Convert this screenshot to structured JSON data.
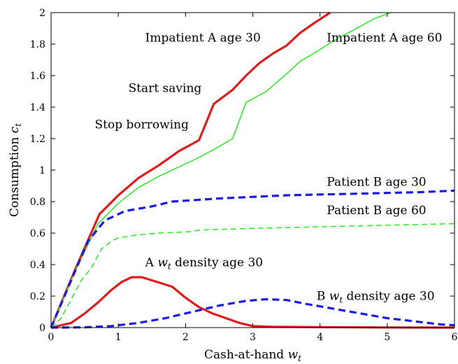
{
  "chart_data": {
    "type": "line",
    "xlabel": "Cash-at-hand",
    "xlabel_sub": "t",
    "xlabel_var": "w",
    "ylabel": "Consumption",
    "ylabel_var": "c",
    "ylabel_sub": "t",
    "xlim": [
      0,
      6
    ],
    "ylim": [
      0,
      2
    ],
    "xticks": [
      0,
      1,
      2,
      3,
      4,
      5,
      6
    ],
    "yticks": [
      0,
      0.2,
      0.4,
      0.6,
      0.8,
      1,
      1.2,
      1.4,
      1.6,
      1.8,
      2
    ],
    "ytick_labels": [
      "0",
      "0.2",
      "0.4",
      "0.6",
      "0.8",
      "1",
      "1.2",
      "1.4",
      "1.6",
      "1.8",
      "2"
    ],
    "grid": false,
    "legend": "none",
    "series": [
      {
        "label_id": "impatient-a-age30",
        "color": "#e31a1c",
        "style": "solid-thick",
        "points": [
          [
            0,
            0
          ],
          [
            0.35,
            0.36
          ],
          [
            0.72,
            0.72
          ],
          [
            1.0,
            0.84
          ],
          [
            1.3,
            0.95
          ],
          [
            1.6,
            1.03
          ],
          [
            1.9,
            1.12
          ],
          [
            2.2,
            1.19
          ],
          [
            2.42,
            1.42
          ],
          [
            2.7,
            1.51
          ],
          [
            2.9,
            1.6
          ],
          [
            3.1,
            1.68
          ],
          [
            3.3,
            1.74
          ],
          [
            3.5,
            1.79
          ],
          [
            3.7,
            1.87
          ],
          [
            3.9,
            1.93
          ],
          [
            4.15,
            2.0
          ]
        ]
      },
      {
        "label_id": "impatient-a-age60",
        "color": "#22ee22",
        "style": "solid-thin",
        "points": [
          [
            0,
            0
          ],
          [
            0.35,
            0.35
          ],
          [
            0.7,
            0.66
          ],
          [
            1.0,
            0.79
          ],
          [
            1.3,
            0.89
          ],
          [
            1.6,
            0.96
          ],
          [
            1.9,
            1.02
          ],
          [
            2.2,
            1.08
          ],
          [
            2.5,
            1.15
          ],
          [
            2.7,
            1.2
          ],
          [
            2.9,
            1.43
          ],
          [
            3.2,
            1.5
          ],
          [
            3.5,
            1.61
          ],
          [
            3.7,
            1.69
          ],
          [
            3.9,
            1.74
          ],
          [
            4.2,
            1.82
          ],
          [
            4.5,
            1.89
          ],
          [
            4.8,
            1.96
          ],
          [
            5.05,
            2.0
          ]
        ]
      },
      {
        "label_id": "patient-b-age30",
        "color": "#1a1aee",
        "style": "dashed-thick",
        "points": [
          [
            0,
            0
          ],
          [
            0.3,
            0.3
          ],
          [
            0.55,
            0.55
          ],
          [
            0.8,
            0.68
          ],
          [
            1.1,
            0.74
          ],
          [
            1.5,
            0.77
          ],
          [
            1.8,
            0.8
          ],
          [
            2.5,
            0.82
          ],
          [
            3.5,
            0.84
          ],
          [
            4.5,
            0.85
          ],
          [
            5.5,
            0.86
          ],
          [
            6.0,
            0.87
          ]
        ]
      },
      {
        "label_id": "patient-b-age60",
        "color": "#22ee22",
        "style": "dashed-thin",
        "points": [
          [
            0,
            0
          ],
          [
            0.15,
            0.06
          ],
          [
            0.3,
            0.18
          ],
          [
            0.45,
            0.3
          ],
          [
            0.6,
            0.38
          ],
          [
            0.75,
            0.5
          ],
          [
            0.9,
            0.55
          ],
          [
            1.0,
            0.57
          ],
          [
            1.3,
            0.59
          ],
          [
            1.6,
            0.6
          ],
          [
            2.1,
            0.61
          ],
          [
            2.2,
            0.62
          ],
          [
            3,
            0.63
          ],
          [
            4,
            0.64
          ],
          [
            5,
            0.65
          ],
          [
            6,
            0.66
          ]
        ]
      },
      {
        "label_id": "a-density-age30",
        "color": "#e31a1c",
        "style": "solid-thick",
        "points": [
          [
            0,
            0
          ],
          [
            0.3,
            0.03
          ],
          [
            0.5,
            0.09
          ],
          [
            0.7,
            0.16
          ],
          [
            0.9,
            0.24
          ],
          [
            1.05,
            0.29
          ],
          [
            1.2,
            0.32
          ],
          [
            1.35,
            0.32
          ],
          [
            1.5,
            0.3
          ],
          [
            1.8,
            0.26
          ],
          [
            2.0,
            0.19
          ],
          [
            2.2,
            0.13
          ],
          [
            2.4,
            0.09
          ],
          [
            2.6,
            0.06
          ],
          [
            2.8,
            0.03
          ],
          [
            3.0,
            0.01
          ],
          [
            3.3,
            0.005
          ],
          [
            4,
            0.003
          ],
          [
            5,
            0.001
          ],
          [
            6,
            0
          ]
        ]
      },
      {
        "label_id": "b-density-age30",
        "color": "#1a1aee",
        "style": "dashed-thick",
        "points": [
          [
            0,
            0
          ],
          [
            0.5,
            0.002
          ],
          [
            0.9,
            0.01
          ],
          [
            1.3,
            0.03
          ],
          [
            1.7,
            0.06
          ],
          [
            2.1,
            0.1
          ],
          [
            2.5,
            0.14
          ],
          [
            2.9,
            0.17
          ],
          [
            3.2,
            0.18
          ],
          [
            3.5,
            0.175
          ],
          [
            3.8,
            0.15
          ],
          [
            4.2,
            0.12
          ],
          [
            4.6,
            0.09
          ],
          [
            5.0,
            0.06
          ],
          [
            5.4,
            0.04
          ],
          [
            5.8,
            0.02
          ],
          [
            6.0,
            0.015
          ]
        ]
      }
    ],
    "annotations": [
      {
        "id": "impatient-a-age30",
        "text": "Impatient A age 30",
        "x": 1.4,
        "y": 1.815
      },
      {
        "id": "impatient-a-age60",
        "text": "Impatient A age 60",
        "x": 4.1,
        "y": 1.815
      },
      {
        "id": "start-saving",
        "text": "Start saving",
        "x": 1.15,
        "y": 1.495
      },
      {
        "id": "stop-borrowing",
        "text": "Stop borrowing",
        "x": 0.65,
        "y": 1.265
      },
      {
        "id": "patient-b-age30",
        "text": "Patient B age 30",
        "x": 4.1,
        "y": 0.9
      },
      {
        "id": "patient-b-age60",
        "text": "Patient B age 60",
        "x": 4.1,
        "y": 0.72
      },
      {
        "id": "a-density-age30",
        "text": "A",
        "var": "w",
        "sub": "t",
        "rest": "density age 30",
        "x": 1.4,
        "y": 0.39
      },
      {
        "id": "b-density-age30",
        "text": "B",
        "var": "w",
        "sub": "t",
        "rest": "density age 30",
        "x": 3.95,
        "y": 0.175
      }
    ]
  }
}
